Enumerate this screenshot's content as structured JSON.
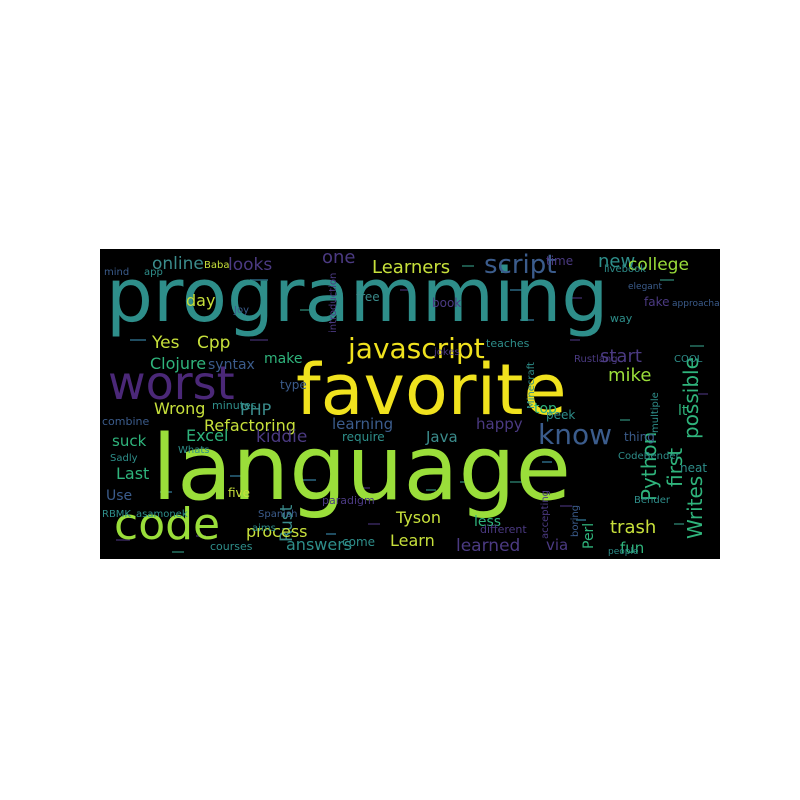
{
  "image": {
    "background_color": "#000000",
    "page_color": "#ffffff"
  },
  "words": [
    {
      "text": "programming",
      "color": "#2e8e8a"
    },
    {
      "text": "language",
      "color": "#9ade3a"
    },
    {
      "text": "favorite",
      "color": "#f0e21e"
    },
    {
      "text": "worst",
      "color": "#4b2878"
    },
    {
      "text": "code",
      "color": "#9ade3a"
    },
    {
      "text": "javascript",
      "color": "#f0e21e"
    },
    {
      "text": "know",
      "color": "#3b5c8c"
    },
    {
      "text": "script",
      "color": "#3b5c8c"
    },
    {
      "text": "Python",
      "color": "#2fb47c"
    },
    {
      "text": "possible",
      "color": "#2fb47c"
    },
    {
      "text": "first",
      "color": "#2fb47c"
    },
    {
      "text": "Writes",
      "color": "#2fb47c"
    },
    {
      "text": "Learners",
      "color": "#c7e03b"
    },
    {
      "text": "new",
      "color": "#2e8e8a"
    },
    {
      "text": "college",
      "color": "#9ade3a"
    },
    {
      "text": "online",
      "color": "#3b8c8c"
    },
    {
      "text": "looks",
      "color": "#4b3a82"
    },
    {
      "text": "one",
      "color": "#4b3a82"
    },
    {
      "text": "Yes",
      "color": "#c7e03b"
    },
    {
      "text": "Cpp",
      "color": "#c7e03b"
    },
    {
      "text": "Clojure",
      "color": "#2fb47c"
    },
    {
      "text": "syntax",
      "color": "#3b5c8c"
    },
    {
      "text": "make",
      "color": "#2fb47c"
    },
    {
      "text": "start",
      "color": "#4b3a82"
    },
    {
      "text": "mike",
      "color": "#9ade3a"
    },
    {
      "text": "day",
      "color": "#c7e03b"
    },
    {
      "text": "Wrong",
      "color": "#c7e03b"
    },
    {
      "text": "PHP",
      "color": "#3b8c8c"
    },
    {
      "text": "Refactoring",
      "color": "#c7e03b"
    },
    {
      "text": "kiddie",
      "color": "#4b3a82"
    },
    {
      "text": "Excel",
      "color": "#2fb47c"
    },
    {
      "text": "suck",
      "color": "#2fb47c"
    },
    {
      "text": "Last",
      "color": "#2fb47c"
    },
    {
      "text": "Use",
      "color": "#3b5c8c"
    },
    {
      "text": "learning",
      "color": "#3b5c8c"
    },
    {
      "text": "require",
      "color": "#2e8e8a"
    },
    {
      "text": "Java",
      "color": "#3b8c8c"
    },
    {
      "text": "happy",
      "color": "#4b3a82"
    },
    {
      "text": "top",
      "color": "#2fb47c"
    },
    {
      "text": "Rust",
      "color": "#3b8c8c"
    },
    {
      "text": "process",
      "color": "#c7e03b"
    },
    {
      "text": "answers",
      "color": "#2e8e8a"
    },
    {
      "text": "Tyson",
      "color": "#c7e03b"
    },
    {
      "text": "less",
      "color": "#2fb47c"
    },
    {
      "text": "Learn",
      "color": "#c7e03b"
    },
    {
      "text": "come",
      "color": "#2e8e8a"
    },
    {
      "text": "learned",
      "color": "#4b3a82"
    },
    {
      "text": "via",
      "color": "#4b3a82"
    },
    {
      "text": "trash",
      "color": "#c7e03b"
    },
    {
      "text": "fun",
      "color": "#2fb47c"
    },
    {
      "text": "Perl",
      "color": "#2fb47c"
    },
    {
      "text": "lt",
      "color": "#2fb47c"
    },
    {
      "text": "thing",
      "color": "#3b5c8c"
    },
    {
      "text": "neat",
      "color": "#2e8e8a"
    },
    {
      "text": "people",
      "color": "#2e8e8a"
    },
    {
      "text": "Bender",
      "color": "#2e8e8a"
    },
    {
      "text": "CodeBender",
      "color": "#2e8e8a"
    },
    {
      "text": "different",
      "color": "#4b3a82"
    },
    {
      "text": "peek",
      "color": "#2e8e8a"
    },
    {
      "text": "jokes",
      "color": "#4b3a82"
    },
    {
      "text": "teaches",
      "color": "#2e8e8a"
    },
    {
      "text": "RBMK",
      "color": "#2e8e8a"
    },
    {
      "text": "asamonek",
      "color": "#2e8e8a"
    },
    {
      "text": "five",
      "color": "#c7e03b"
    },
    {
      "text": "minutes",
      "color": "#2e8e8a"
    },
    {
      "text": "combine",
      "color": "#3b5c8c"
    },
    {
      "text": "type",
      "color": "#3b5c8c"
    },
    {
      "text": "Spanish",
      "color": "#3b5c8c"
    },
    {
      "text": "aims",
      "color": "#2e8e8a"
    },
    {
      "text": "courses",
      "color": "#2e8e8a"
    },
    {
      "text": "paradigm",
      "color": "#4b3a82"
    },
    {
      "text": "Sadly",
      "color": "#2e8e8a"
    },
    {
      "text": "Whats",
      "color": "#2e8e8a"
    },
    {
      "text": "free",
      "color": "#3b8c8c"
    },
    {
      "text": "book",
      "color": "#4b3a82"
    },
    {
      "text": "introduction",
      "color": "#4b3a82"
    },
    {
      "text": "time",
      "color": "#4b3a82"
    },
    {
      "text": "fake",
      "color": "#4b3a82"
    },
    {
      "text": "Minecraft",
      "color": "#2e8e8a"
    },
    {
      "text": "Rustlang",
      "color": "#4b3a82"
    },
    {
      "text": "COOL",
      "color": "#2e8e8a"
    },
    {
      "text": "mind",
      "color": "#3b5c8c"
    },
    {
      "text": "app",
      "color": "#2e8e8a"
    },
    {
      "text": "Baba",
      "color": "#c7e03b"
    },
    {
      "text": "Joy",
      "color": "#3b5c8c"
    },
    {
      "text": "livebook",
      "color": "#2e8e8a"
    },
    {
      "text": "accepting",
      "color": "#4b3a82"
    },
    {
      "text": "boring",
      "color": "#3b5c8c"
    },
    {
      "text": "elegant",
      "color": "#3b5c8c"
    },
    {
      "text": "approachable",
      "color": "#3b5c8c"
    },
    {
      "text": "way",
      "color": "#2e8e8a"
    },
    {
      "text": "multiple",
      "color": "#2e8e8a"
    }
  ]
}
